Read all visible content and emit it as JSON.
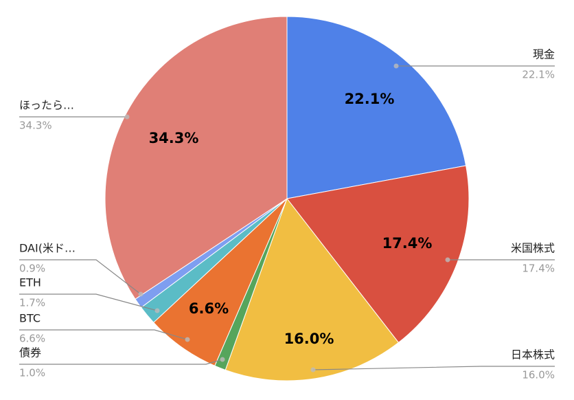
{
  "chart_data": {
    "type": "pie",
    "categories": [
      "現金",
      "米国株式",
      "日本株式",
      "債券",
      "BTC",
      "ETH",
      "DAI(米ド…",
      "ほったら…"
    ],
    "values": [
      22.1,
      17.4,
      16.0,
      1.0,
      6.6,
      1.7,
      0.9,
      34.3
    ],
    "value_labels": [
      "22.1%",
      "17.4%",
      "16.0%",
      "1.0%",
      "6.6%",
      "1.7%",
      "0.9%",
      "34.3%"
    ],
    "colors": [
      "#4f81e8",
      "#d95040",
      "#f1be42",
      "#56a55c",
      "#ea7331",
      "#5bbcc6",
      "#7e9ef0",
      "#e07f76"
    ]
  }
}
